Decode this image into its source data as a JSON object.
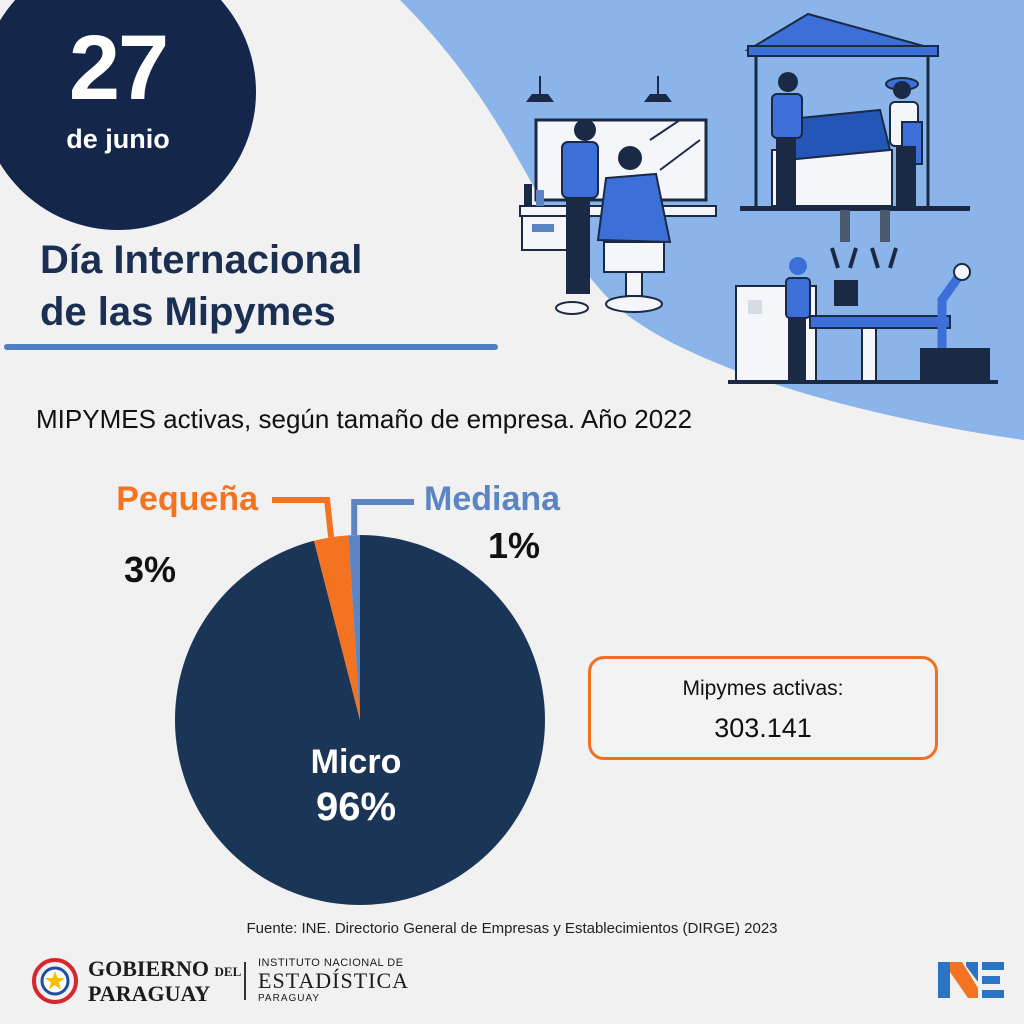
{
  "date": {
    "day": "27",
    "month": "de junio"
  },
  "title": {
    "line1": "Día Internacional",
    "line2": "de las Mipymes"
  },
  "chart_data": {
    "type": "pie",
    "title": "MIPYMES activas, según tamaño de empresa. Año 2022",
    "categories": [
      "Micro",
      "Pequeña",
      "Mediana"
    ],
    "values": [
      96,
      3,
      1
    ],
    "value_labels": [
      "96%",
      "3%",
      "1%"
    ],
    "unit": "%",
    "colors": [
      "#1b3556",
      "#f47320",
      "#5b86c3"
    ]
  },
  "total": {
    "label": "Mipymes activas:",
    "value": "303.141"
  },
  "source": "Fuente: INE. Directorio General de Empresas y Establecimientos (DIRGE) 2023",
  "logos": {
    "gov_line1": "GOBIERNO",
    "gov_del": "DEL",
    "gov_line2": "PARAGUAY",
    "ine_line1": "INSTITUTO NACIONAL DE",
    "ine_line2": "ESTADÍSTICA",
    "ine_line3": "PARAGUAY"
  },
  "colors": {
    "navy": "#1a2f52",
    "orange": "#f47320",
    "blue": "#5b86c3",
    "light_blue": "#8ab4ea"
  }
}
